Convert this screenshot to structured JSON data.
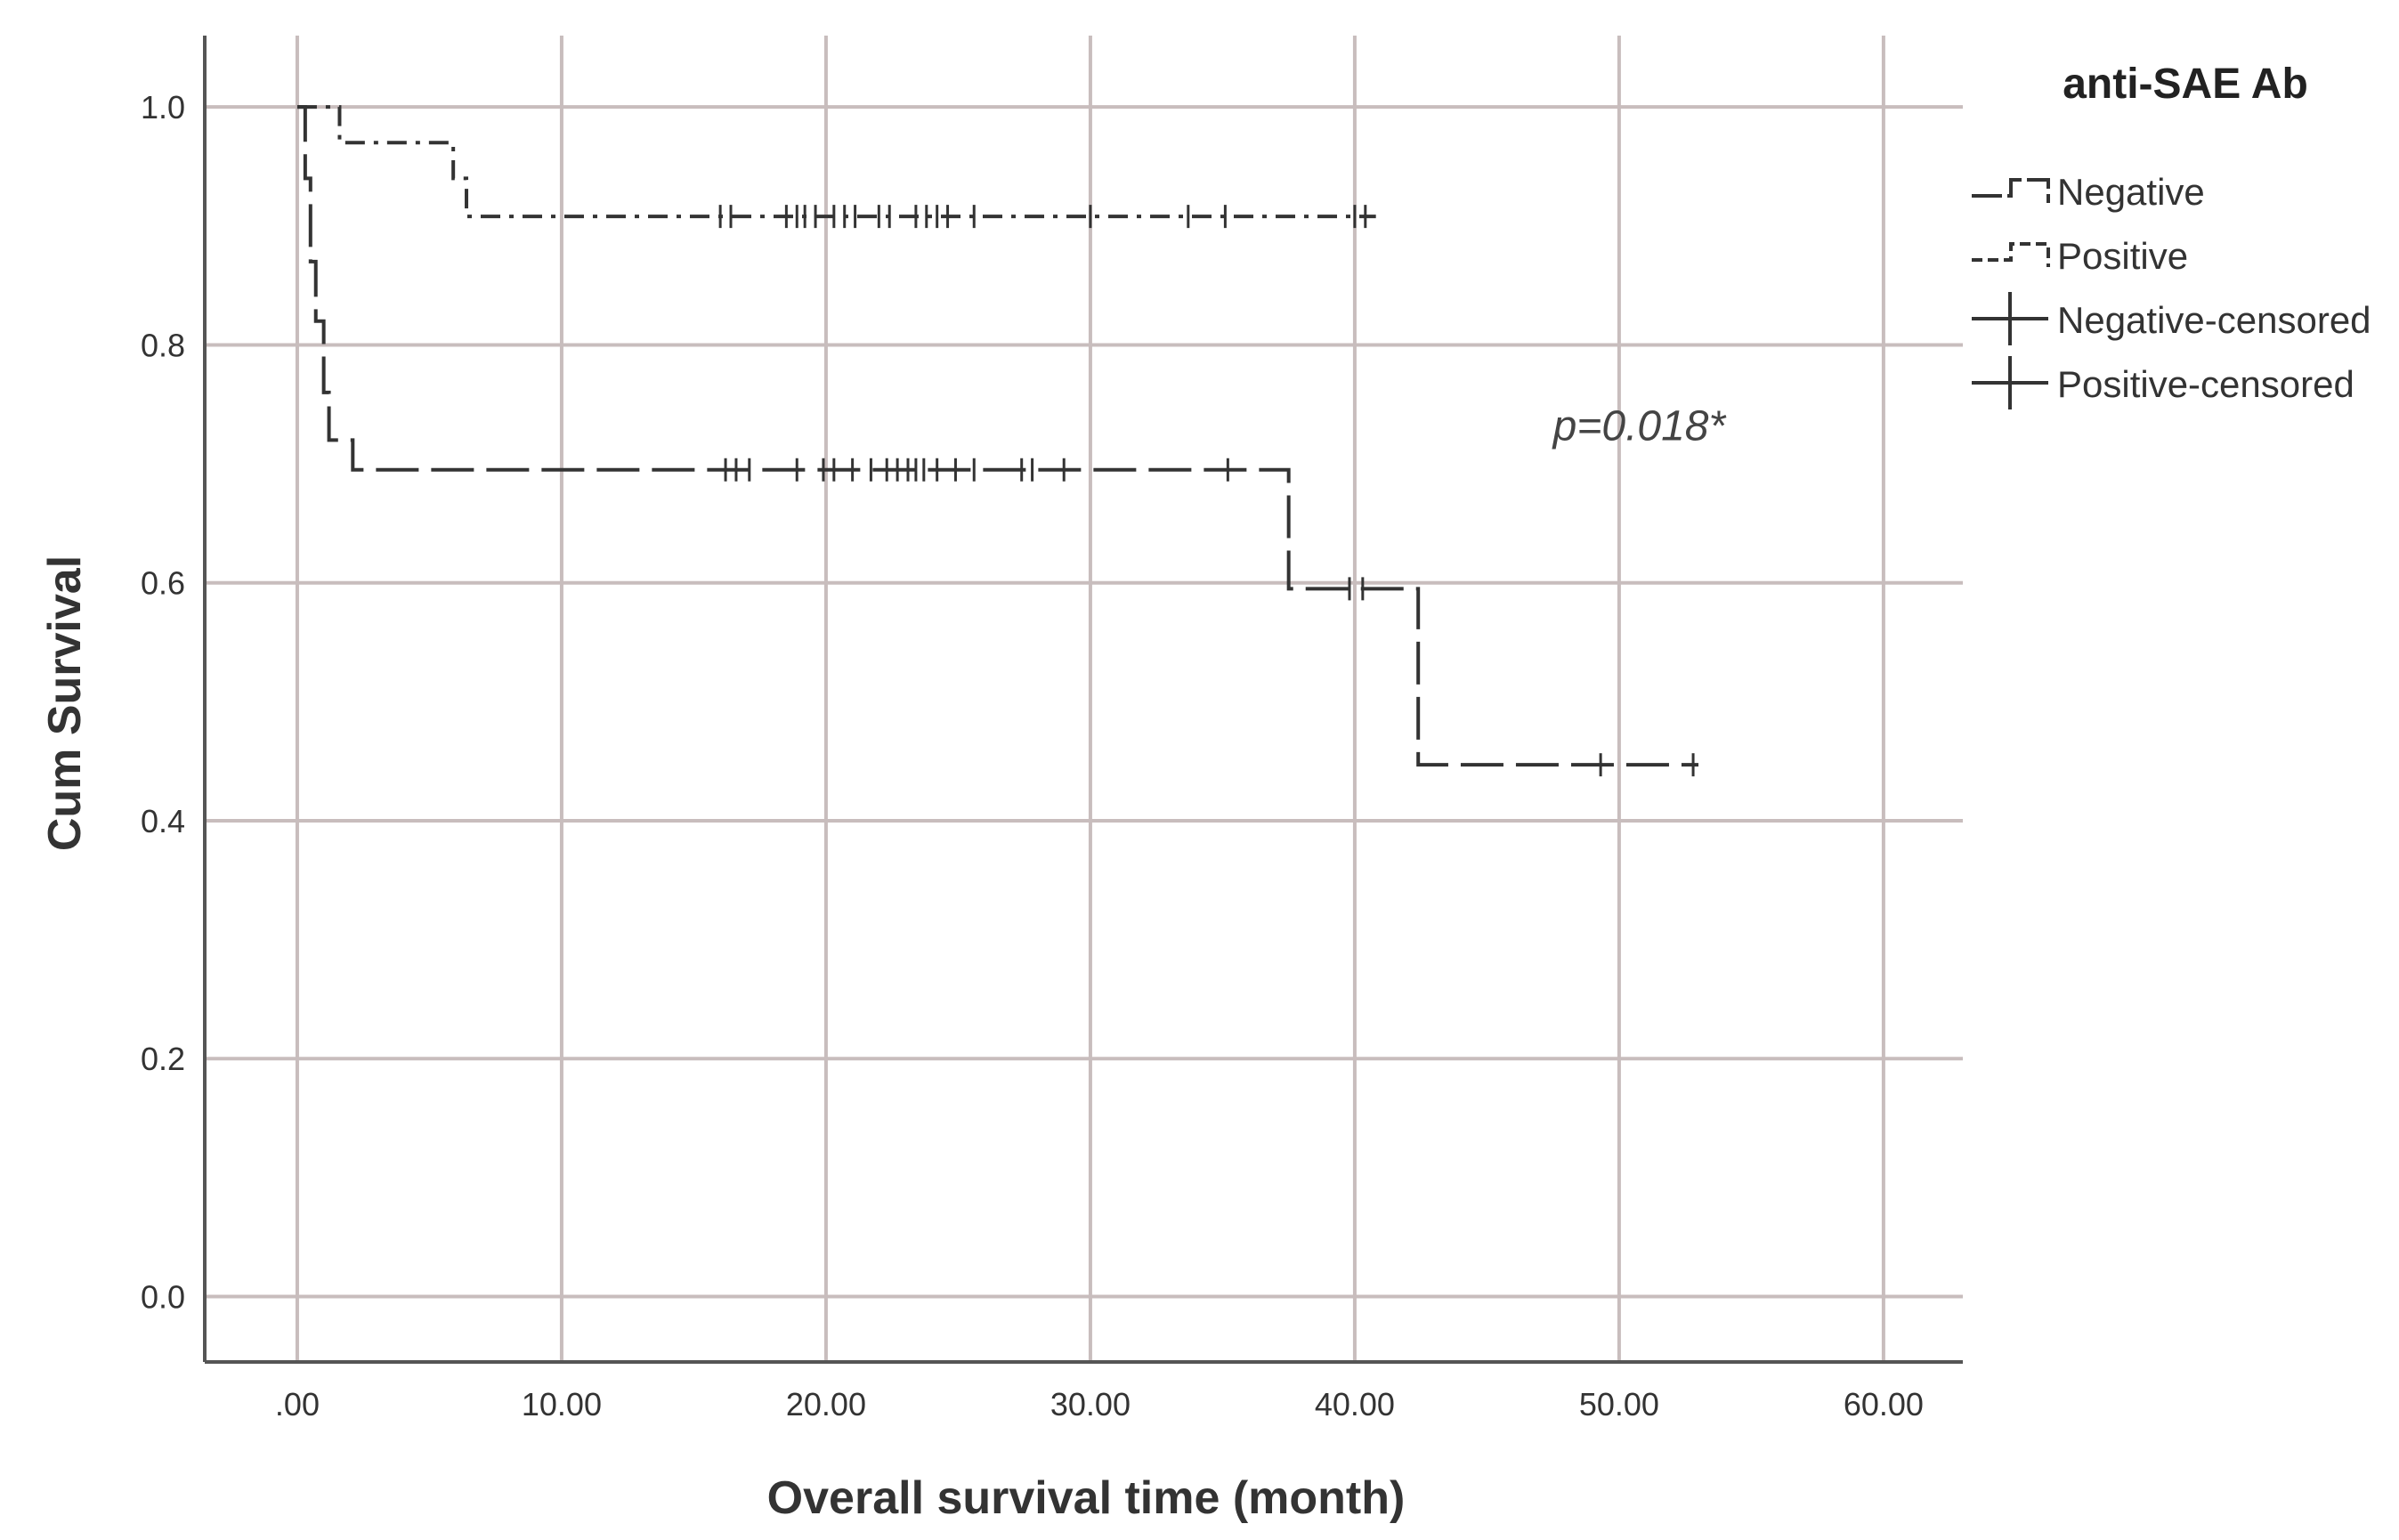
{
  "chart_data": {
    "type": "line",
    "subtype": "kaplan-meier",
    "title": "",
    "xlabel": "Overall survival time (month)",
    "ylabel": "Cum Survival",
    "xlim": [
      -3.5,
      63
    ],
    "ylim": [
      -0.055,
      1.06
    ],
    "xticks": [
      0,
      10,
      20,
      30,
      40,
      50,
      60
    ],
    "xtick_labels": [
      ".00",
      "10.00",
      "20.00",
      "30.00",
      "40.00",
      "50.00",
      "60.00"
    ],
    "yticks": [
      1.0,
      0.8,
      0.6,
      0.4,
      0.2,
      0.0
    ],
    "ytick_labels": [
      "1.0",
      "0.8",
      "0.6",
      "0.4",
      "0.2",
      "0.0"
    ],
    "grid": true,
    "legend": {
      "title": "anti-SAE Ab",
      "placement": "top-right-outside",
      "entries": [
        {
          "label": "Negative",
          "kind": "line-negative"
        },
        {
          "label": "Positive",
          "kind": "line-positive"
        },
        {
          "label": "Negative-censored",
          "kind": "censor"
        },
        {
          "label": "Positive-censored",
          "kind": "censor"
        }
      ]
    },
    "annotations": [
      {
        "text": "p=0.018*",
        "x": 47.5,
        "y": 0.72
      }
    ],
    "series": [
      {
        "name": "Negative",
        "style": "dashed",
        "steps": [
          {
            "x": 0.0,
            "y": 1.0
          },
          {
            "x": 0.3,
            "y": 0.94
          },
          {
            "x": 0.5,
            "y": 0.87
          },
          {
            "x": 0.7,
            "y": 0.82
          },
          {
            "x": 1.0,
            "y": 0.76
          },
          {
            "x": 1.2,
            "y": 0.72
          },
          {
            "x": 2.1,
            "y": 0.695
          },
          {
            "x": 37.5,
            "y": 0.595
          },
          {
            "x": 42.4,
            "y": 0.447
          }
        ],
        "end_x": 53.0,
        "censored": [
          {
            "x": 16.2,
            "y": 0.695
          },
          {
            "x": 16.6,
            "y": 0.695
          },
          {
            "x": 17.1,
            "y": 0.695
          },
          {
            "x": 18.9,
            "y": 0.695
          },
          {
            "x": 19.9,
            "y": 0.695
          },
          {
            "x": 20.3,
            "y": 0.695
          },
          {
            "x": 21.0,
            "y": 0.695
          },
          {
            "x": 21.7,
            "y": 0.695
          },
          {
            "x": 22.3,
            "y": 0.695
          },
          {
            "x": 22.7,
            "y": 0.695
          },
          {
            "x": 23.1,
            "y": 0.695
          },
          {
            "x": 23.4,
            "y": 0.695
          },
          {
            "x": 23.7,
            "y": 0.695
          },
          {
            "x": 24.2,
            "y": 0.695
          },
          {
            "x": 24.9,
            "y": 0.695
          },
          {
            "x": 25.6,
            "y": 0.695
          },
          {
            "x": 27.4,
            "y": 0.695
          },
          {
            "x": 27.8,
            "y": 0.695
          },
          {
            "x": 29.0,
            "y": 0.695
          },
          {
            "x": 35.2,
            "y": 0.695
          },
          {
            "x": 39.8,
            "y": 0.595
          },
          {
            "x": 40.3,
            "y": 0.595
          },
          {
            "x": 49.3,
            "y": 0.447
          },
          {
            "x": 52.8,
            "y": 0.447
          }
        ]
      },
      {
        "name": "Positive",
        "style": "dash-dot",
        "steps": [
          {
            "x": 0.0,
            "y": 1.0
          },
          {
            "x": 1.6,
            "y": 0.97
          },
          {
            "x": 5.9,
            "y": 0.94
          },
          {
            "x": 6.4,
            "y": 0.908
          }
        ],
        "end_x": 40.8,
        "censored": [
          {
            "x": 16.0,
            "y": 0.908
          },
          {
            "x": 16.4,
            "y": 0.908
          },
          {
            "x": 18.5,
            "y": 0.908
          },
          {
            "x": 18.9,
            "y": 0.908
          },
          {
            "x": 19.2,
            "y": 0.908
          },
          {
            "x": 19.6,
            "y": 0.908
          },
          {
            "x": 20.3,
            "y": 0.908
          },
          {
            "x": 20.7,
            "y": 0.908
          },
          {
            "x": 21.1,
            "y": 0.908
          },
          {
            "x": 22.0,
            "y": 0.908
          },
          {
            "x": 22.4,
            "y": 0.908
          },
          {
            "x": 23.4,
            "y": 0.908
          },
          {
            "x": 23.8,
            "y": 0.908
          },
          {
            "x": 24.2,
            "y": 0.908
          },
          {
            "x": 24.6,
            "y": 0.908
          },
          {
            "x": 25.6,
            "y": 0.908
          },
          {
            "x": 30.0,
            "y": 0.908
          },
          {
            "x": 33.7,
            "y": 0.908
          },
          {
            "x": 35.1,
            "y": 0.908
          },
          {
            "x": 40.0,
            "y": 0.908
          },
          {
            "x": 40.4,
            "y": 0.908
          }
        ]
      }
    ]
  }
}
